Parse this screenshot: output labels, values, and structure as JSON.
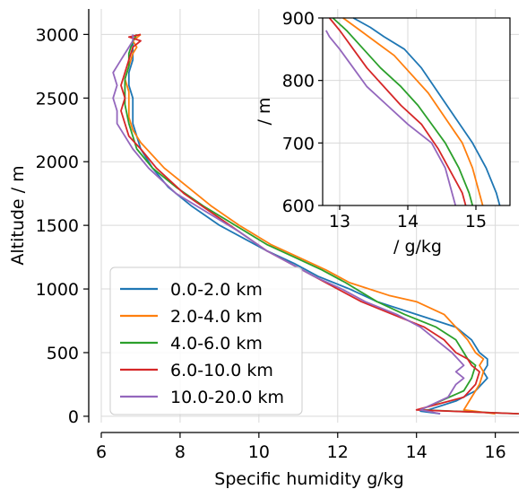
{
  "chart_data": {
    "main": {
      "type": "line",
      "xlabel": "Specific humidity g/kg",
      "ylabel": "Altitude / m",
      "xlim": [
        6,
        16.6
      ],
      "ylim": [
        -50,
        3200
      ],
      "xticks": [
        6,
        8,
        10,
        12,
        14,
        16
      ],
      "yticks": [
        0,
        500,
        1000,
        1500,
        2000,
        2500,
        3000
      ],
      "grid": true,
      "legend_position": "lower-left",
      "series": [
        {
          "name": "0.0-2.0 km",
          "color": "#1f77b4",
          "x": [
            14.6,
            14.1,
            14.3,
            15.0,
            15.5,
            15.8,
            15.7,
            15.8,
            15.8,
            15.6,
            15.4,
            15.0,
            14.0,
            13.0,
            12.3,
            11.5,
            10.9,
            10.2,
            9.6,
            9.0,
            8.3,
            7.7,
            7.3,
            7.0,
            6.9,
            6.8,
            6.8,
            6.8,
            6.7,
            6.7,
            6.8,
            6.8,
            6.8,
            6.8,
            6.9,
            6.9
          ],
          "y": [
            20,
            40,
            50,
            120,
            200,
            300,
            350,
            400,
            450,
            500,
            600,
            700,
            800,
            900,
            1000,
            1100,
            1200,
            1300,
            1400,
            1500,
            1650,
            1800,
            1950,
            2100,
            2200,
            2300,
            2400,
            2500,
            2600,
            2700,
            2800,
            2850,
            2900,
            2950,
            3000,
            3000
          ]
        },
        {
          "name": "2.0-4.0 km",
          "color": "#ff7f0e",
          "x": [
            16.0,
            15.2,
            15.4,
            15.6,
            15.7,
            15.6,
            15.7,
            15.5,
            15.3,
            15.0,
            14.7,
            14.0,
            13.3,
            12.3,
            11.7,
            11.0,
            10.3,
            9.5,
            8.8,
            8.2,
            7.6,
            7.0,
            6.8,
            6.7,
            6.7,
            6.7,
            6.6,
            6.7,
            6.8,
            6.9,
            6.8,
            7.0
          ],
          "y": [
            20,
            50,
            150,
            250,
            350,
            400,
            450,
            500,
            600,
            700,
            800,
            900,
            950,
            1050,
            1150,
            1250,
            1350,
            1500,
            1650,
            1800,
            1950,
            2150,
            2250,
            2350,
            2450,
            2550,
            2650,
            2750,
            2850,
            2900,
            2950,
            3000
          ]
        },
        {
          "name": "4.0-6.0 km",
          "color": "#2ca02c",
          "x": [
            16.6,
            14.1,
            15.2,
            15.4,
            15.5,
            15.3,
            15.2,
            15.0,
            14.5,
            13.7,
            13.0,
            12.2,
            11.6,
            10.9,
            10.2,
            9.4,
            8.6,
            7.9,
            7.3,
            6.9,
            6.8,
            6.7,
            6.6,
            6.6,
            6.6,
            6.7,
            6.7,
            6.8,
            6.9
          ],
          "y": [
            20,
            50,
            200,
            300,
            400,
            450,
            500,
            600,
            700,
            800,
            900,
            1050,
            1150,
            1250,
            1350,
            1500,
            1650,
            1800,
            1950,
            2100,
            2200,
            2300,
            2450,
            2550,
            2650,
            2750,
            2850,
            2950,
            3000
          ]
        },
        {
          "name": "6.0-10.0 km",
          "color": "#d62728",
          "x": [
            16.6,
            14.0,
            15.2,
            15.5,
            15.6,
            15.4,
            15.3,
            15.0,
            14.7,
            14.2,
            13.4,
            12.6,
            12.0,
            11.4,
            10.8,
            10.2,
            9.5,
            8.8,
            8.1,
            7.4,
            7.0,
            6.7,
            6.6,
            6.5,
            6.6,
            6.5,
            6.6,
            6.7,
            6.8,
            7.0,
            6.7,
            7.0
          ],
          "y": [
            20,
            50,
            150,
            250,
            350,
            400,
            450,
            500,
            600,
            700,
            800,
            900,
            1000,
            1100,
            1200,
            1300,
            1450,
            1600,
            1750,
            1950,
            2100,
            2200,
            2300,
            2400,
            2500,
            2600,
            2700,
            2800,
            2900,
            2950,
            2980,
            3000
          ]
        },
        {
          "name": "10.0-20.0 km",
          "color": "#9467bd",
          "x": [
            14.6,
            14.1,
            14.8,
            15.0,
            15.2,
            15.0,
            15.2,
            14.9,
            14.5,
            14.1,
            13.5,
            12.7,
            12.1,
            11.4,
            10.8,
            10.2,
            9.5,
            8.7,
            7.9,
            7.2,
            6.8,
            6.6,
            6.4,
            6.4,
            6.3,
            6.4,
            6.3,
            6.4,
            6.5,
            6.6,
            6.7,
            6.8,
            6.8
          ],
          "y": [
            20,
            50,
            150,
            250,
            300,
            350,
            400,
            500,
            600,
            700,
            800,
            900,
            1000,
            1100,
            1200,
            1300,
            1450,
            1600,
            1750,
            1950,
            2100,
            2200,
            2300,
            2400,
            2500,
            2600,
            2700,
            2750,
            2800,
            2850,
            2900,
            2950,
            3000
          ]
        }
      ]
    },
    "inset": {
      "type": "line",
      "xlabel": "/ g/kg",
      "ylabel": "/ m",
      "xlim": [
        12.75,
        15.5
      ],
      "ylim": [
        600,
        900
      ],
      "xticks": [
        13,
        14,
        15
      ],
      "yticks": [
        600,
        700,
        800,
        900
      ],
      "grid": true,
      "series": [
        {
          "name": "0.0-2.0 km",
          "color": "#1f77b4",
          "x": [
            15.35,
            15.3,
            15.15,
            14.95,
            14.7,
            14.45,
            14.2,
            13.95,
            13.65,
            13.45,
            13.2
          ],
          "y": [
            600,
            620,
            660,
            700,
            740,
            780,
            820,
            850,
            870,
            885,
            900
          ]
        },
        {
          "name": "2.0-4.0 km",
          "color": "#ff7f0e",
          "x": [
            15.1,
            15.05,
            14.95,
            14.8,
            14.55,
            14.3,
            14.05,
            13.8,
            13.55,
            13.3,
            13.05
          ],
          "y": [
            600,
            620,
            660,
            700,
            740,
            780,
            810,
            840,
            860,
            880,
            900
          ]
        },
        {
          "name": "4.0-6.0 km",
          "color": "#2ca02c",
          "x": [
            14.95,
            14.9,
            14.75,
            14.55,
            14.35,
            14.15,
            13.9,
            13.6,
            13.35,
            13.1,
            12.9
          ],
          "y": [
            600,
            620,
            660,
            700,
            730,
            760,
            790,
            820,
            850,
            880,
            900
          ]
        },
        {
          "name": "6.0-10.0 km",
          "color": "#d62728",
          "x": [
            14.85,
            14.8,
            14.65,
            14.45,
            14.2,
            13.9,
            13.65,
            13.4,
            13.2,
            13.0,
            12.85
          ],
          "y": [
            600,
            620,
            650,
            690,
            730,
            760,
            790,
            820,
            850,
            880,
            900
          ]
        },
        {
          "name": "10.0-20.0 km",
          "color": "#9467bd",
          "x": [
            14.7,
            14.65,
            14.55,
            14.35,
            14.0,
            13.7,
            13.4,
            13.2,
            13.0,
            12.85,
            12.8
          ],
          "y": [
            600,
            620,
            660,
            700,
            730,
            760,
            790,
            820,
            850,
            870,
            880
          ]
        }
      ]
    }
  }
}
